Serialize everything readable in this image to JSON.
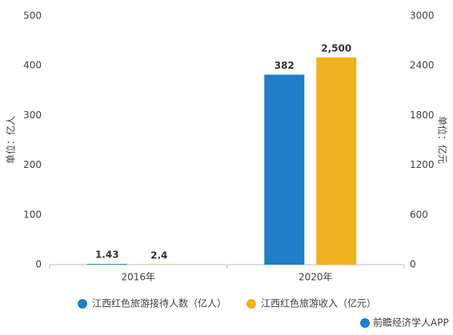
{
  "chart_data": {
    "type": "bar",
    "categories": [
      "2016年",
      "2020年"
    ],
    "series": [
      {
        "name": "江西红色旅游接待人数（亿人）",
        "color": "#1f7ec8",
        "values": [
          1.43,
          382
        ]
      },
      {
        "name": "江西红色旅游收入（亿元）",
        "color": "#f0b020",
        "values": [
          2.4,
          2500
        ],
        "value_labels": [
          "2.4",
          "2,500"
        ],
        "axis": "y2"
      }
    ],
    "ylabel": "单位：亿人",
    "y2label": "单位：亿元",
    "ylim": [
      0,
      500
    ],
    "yticks": [
      0,
      100,
      200,
      300,
      400,
      500
    ],
    "y2lim": [
      0,
      3000
    ],
    "y2ticks": [
      0,
      600,
      1200,
      1800,
      2400,
      3000
    ],
    "legend": "bottom",
    "grid": false,
    "source": "前瞻经济学人APP"
  }
}
